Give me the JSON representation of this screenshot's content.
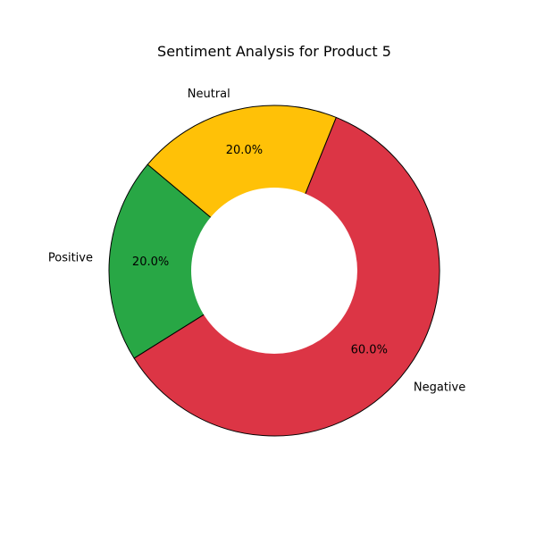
{
  "chart_data": {
    "type": "pie",
    "variant": "donut",
    "title": "Sentiment Analysis for Product 5",
    "start_angle_deg": 140,
    "direction": "counterclockwise",
    "slices": [
      {
        "label": "Positive",
        "value": 20.0,
        "pct_label": "20.0%",
        "color": "#28a745"
      },
      {
        "label": "Negative",
        "value": 60.0,
        "pct_label": "60.0%",
        "color": "#dc3545"
      },
      {
        "label": "Neutral",
        "value": 20.0,
        "pct_label": "20.0%",
        "color": "#ffc107"
      }
    ],
    "edge_color": "#000000",
    "hole_color": "#ffffff",
    "legend": "none"
  }
}
